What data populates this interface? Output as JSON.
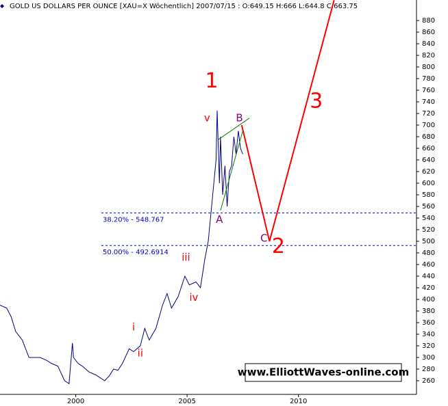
{
  "chart_data": {
    "type": "line",
    "title": "GOLD US DOLLARS PER OUNCE [XAU=X Wöchentlich] 2007/07/15 : O:649.15 H:666 L:644.8 C:663.75",
    "watermark": "www.ElliottWaves-online.com",
    "xlim": [
      1996.6,
      2015.3
    ],
    "ylim": [
      236.5,
      915.3
    ],
    "xticks": [
      2000,
      2005,
      2010
    ],
    "yticks": [
      260,
      280,
      300,
      320,
      340,
      360,
      380,
      400,
      420,
      440,
      460,
      480,
      500,
      520,
      540,
      560,
      580,
      600,
      620,
      640,
      660,
      680,
      700,
      720,
      740,
      760,
      780,
      800,
      820,
      840,
      860,
      880
    ],
    "series": [
      {
        "name": "XAU=X",
        "color": "#000080",
        "x": [
          1996.6,
          1996.9,
          1997.1,
          1997.3,
          1997.6,
          1997.9,
          1998.1,
          1998.4,
          1998.7,
          1998.9,
          1999.2,
          1999.5,
          1999.7,
          1999.8,
          1999.85,
          1999.9,
          2000.1,
          2000.3,
          2000.6,
          2000.9,
          2001.1,
          2001.3,
          2001.5,
          2001.7,
          2001.9,
          2002.1,
          2002.4,
          2002.6,
          2002.9,
          2003.1,
          2003.3,
          2003.6,
          2003.9,
          2004.1,
          2004.3,
          2004.6,
          2004.9,
          2005.1,
          2005.4,
          2005.6,
          2005.8,
          2005.95,
          2006.1,
          2006.3,
          2006.35,
          2006.45,
          2006.5,
          2006.6,
          2006.7,
          2006.8,
          2006.9,
          2007.0,
          2007.1,
          2007.2,
          2007.3,
          2007.4,
          2007.5
        ],
        "values": [
          390,
          385,
          370,
          345,
          330,
          300,
          300,
          300,
          295,
          290,
          285,
          260,
          255,
          300,
          325,
          300,
          290,
          285,
          275,
          270,
          265,
          260,
          268,
          280,
          278,
          290,
          315,
          310,
          320,
          350,
          330,
          350,
          390,
          410,
          385,
          405,
          440,
          425,
          430,
          420,
          470,
          500,
          560,
          640,
          725,
          600,
          680,
          580,
          630,
          560,
          620,
          630,
          680,
          650,
          690,
          660,
          650
        ]
      },
      {
        "name": "projection",
        "color": "#ff0000",
        "x": [
          2007.45,
          2008.7,
          2011.6
        ],
        "values": [
          700,
          500,
          915
        ]
      },
      {
        "name": "upper-trend",
        "color": "#008000",
        "x": [
          2006.4,
          2007.8
        ],
        "values": [
          675,
          712
        ]
      },
      {
        "name": "lower-trend",
        "color": "#008000",
        "x": [
          2006.5,
          2007.5
        ],
        "values": [
          553,
          690
        ]
      }
    ],
    "levels": [
      {
        "value": 548.767,
        "label": "38.20% - 548.767"
      },
      {
        "value": 492.6914,
        "label": "50.00% - 492.6914"
      }
    ],
    "annotations": [
      {
        "text": "1",
        "x": 2006.1,
        "y": 775,
        "color": "#ff0000"
      },
      {
        "text": "v",
        "x": 2005.9,
        "y": 712,
        "color": "#ff0000"
      },
      {
        "text": "B",
        "x": 2007.35,
        "y": 712,
        "color": "#800080"
      },
      {
        "text": "A",
        "x": 2006.45,
        "y": 537,
        "color": "#800080"
      },
      {
        "text": "3",
        "x": 2010.8,
        "y": 740,
        "color": "#ff0000"
      },
      {
        "text": "2",
        "x": 2009.1,
        "y": 490,
        "color": "#ff0000"
      },
      {
        "text": "C",
        "x": 2008.45,
        "y": 505,
        "color": "#800080"
      },
      {
        "text": "iii",
        "x": 2004.95,
        "y": 472,
        "color": "#ff0000"
      },
      {
        "text": "iv",
        "x": 2005.3,
        "y": 403,
        "color": "#ff0000"
      },
      {
        "text": "i",
        "x": 2002.6,
        "y": 352,
        "color": "#ff0000"
      },
      {
        "text": "ii",
        "x": 2002.9,
        "y": 307,
        "color": "#ff0000"
      }
    ]
  }
}
